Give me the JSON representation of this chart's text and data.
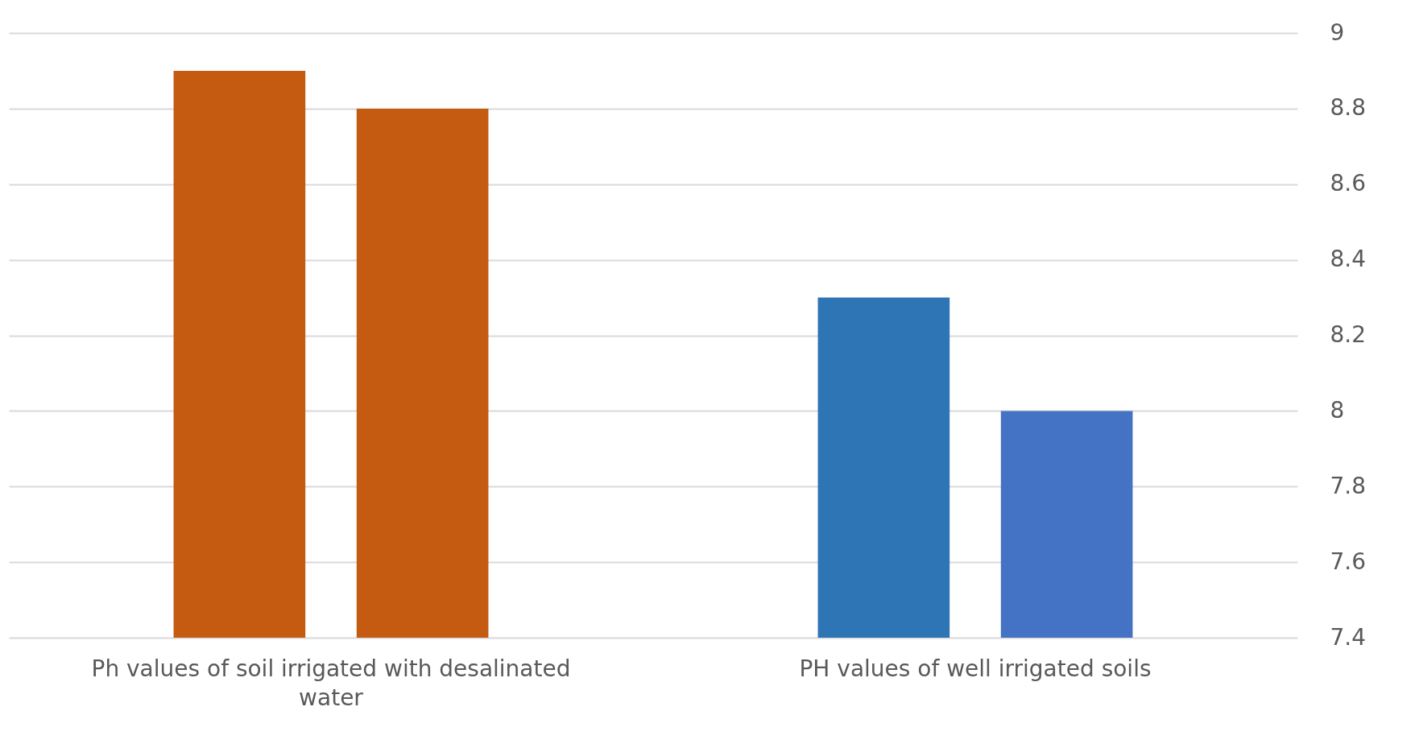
{
  "chart_data": {
    "type": "bar",
    "categories": [
      "Ph values of soil irrigated with desalinated water",
      "PH values of well irrigated soils"
    ],
    "series": [
      {
        "colors": [
          "#c55a11",
          "#2e75b6"
        ],
        "values": [
          8.9,
          8.3
        ]
      },
      {
        "colors": [
          "#c55a11",
          "#4472c4"
        ],
        "values": [
          8.8,
          8.0
        ]
      }
    ],
    "ylim": [
      7.4,
      9
    ],
    "yticks": [
      7.4,
      7.6,
      7.8,
      {
        "value": 8,
        "label": "8"
      },
      8.2,
      8.4,
      8.6,
      8.8,
      {
        "value": 9,
        "label": "9"
      }
    ],
    "grid": "y"
  }
}
